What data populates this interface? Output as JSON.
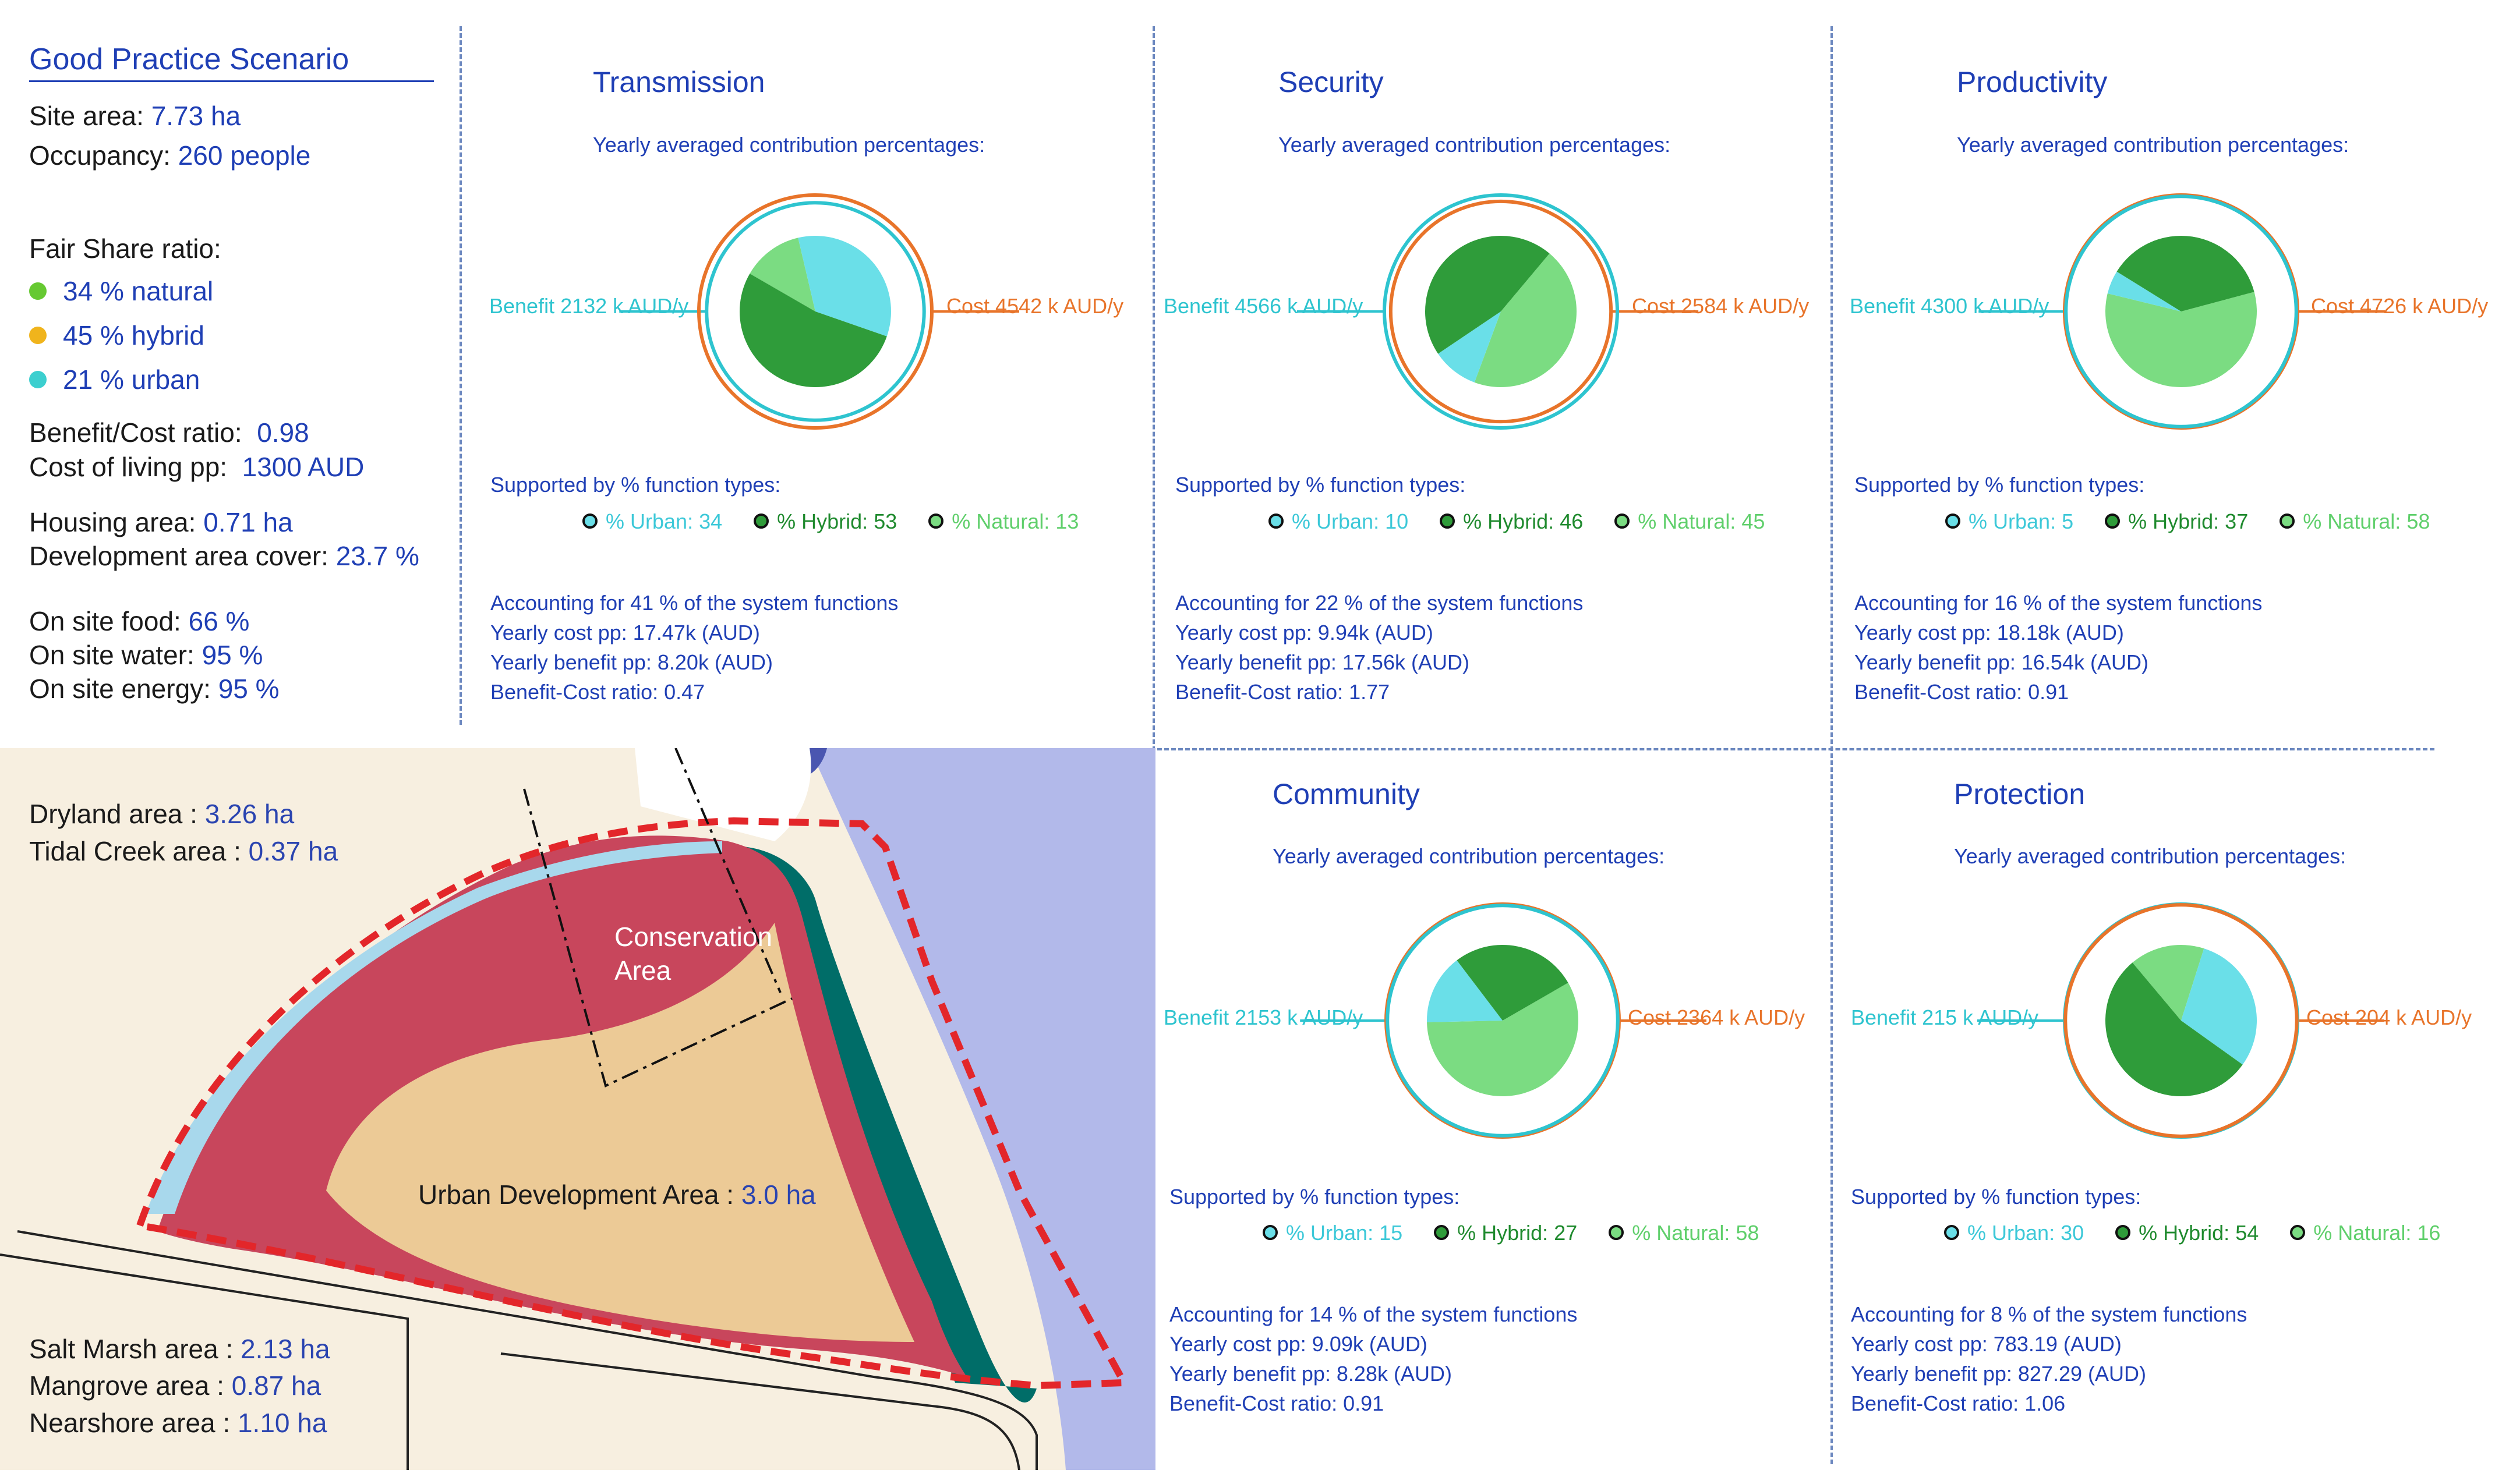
{
  "summary": {
    "title": "Good Practice Scenario",
    "site_area_label": "Site area: ",
    "site_area_value": "7.73 ha",
    "occupancy_label": "Occupancy: ",
    "occupancy_value": "260 people",
    "fair_share_label": "Fair Share ratio:",
    "fair_share": [
      {
        "text": "34 % natural",
        "color": "#66c932"
      },
      {
        "text": "45 % hybrid",
        "color": "#f0b41c"
      },
      {
        "text": "21 % urban",
        "color": "#3ccfcf"
      }
    ],
    "bc_ratio_label": "Benefit/Cost ratio:",
    "bc_ratio_value": "0.98",
    "cost_living_label": "Cost of living pp:",
    "cost_living_value": "1300 AUD",
    "housing_label": "Housing area: ",
    "housing_value": "0.71 ha",
    "dev_cover_label": "Development area cover: ",
    "dev_cover_value": "23.7 %",
    "food_label": "On site food: ",
    "food_value": "66 %",
    "water_label": "On site water: ",
    "water_value": "95 %",
    "energy_label": "On site energy: ",
    "energy_value": "95 %"
  },
  "colors": {
    "urban": "#6adfe8",
    "hybrid": "#2f9c3a",
    "natural": "#7bdc82",
    "benefit": "#2ec4cf",
    "cost": "#e8742a",
    "text_blue": "#1f3fb5"
  },
  "common": {
    "subtitle": "Yearly averaged contribution percentages:",
    "supported_label": "Supported by % function types:",
    "urban_prefix": "% Urban: ",
    "hybrid_prefix": "% Hybrid: ",
    "natural_prefix": "% Natural: "
  },
  "panels": [
    {
      "title": "Transmission",
      "benefit": "Benefit 2132 k AUD/y",
      "cost": "Cost 4542 k AUD/y",
      "urban": 34,
      "hybrid": 53,
      "natural": 13,
      "accounting": "Accounting for 41 % of the system functions",
      "yearly_cost": "Yearly cost pp: 17.47k (AUD)",
      "yearly_benefit": "Yearly benefit pp: 8.20k (AUD)",
      "bc_ratio": "Benefit-Cost ratio: 0.47",
      "benefit_value": 2132,
      "cost_value": 4542
    },
    {
      "title": "Security",
      "benefit": "Benefit 4566 k AUD/y",
      "cost": "Cost 2584 k AUD/y",
      "urban": 10,
      "hybrid": 46,
      "natural": 45,
      "accounting": "Accounting for 22 % of the system functions",
      "yearly_cost": "Yearly cost pp: 9.94k (AUD)",
      "yearly_benefit": "Yearly benefit pp: 17.56k (AUD)",
      "bc_ratio": "Benefit-Cost ratio: 1.77",
      "benefit_value": 4566,
      "cost_value": 2584
    },
    {
      "title": "Productivity",
      "benefit": "Benefit 4300 k AUD/y",
      "cost": "Cost 4726 k AUD/y",
      "urban": 5,
      "hybrid": 37,
      "natural": 58,
      "accounting": "Accounting for 16 % of the system functions",
      "yearly_cost": "Yearly cost pp: 18.18k (AUD)",
      "yearly_benefit": "Yearly benefit pp: 16.54k (AUD)",
      "bc_ratio": "Benefit-Cost ratio: 0.91",
      "benefit_value": 4300,
      "cost_value": 4726
    },
    {
      "title": "Community",
      "benefit": "Benefit 2153 k AUD/y",
      "cost": "Cost 2364 k AUD/y",
      "urban": 15,
      "hybrid": 27,
      "natural": 58,
      "accounting": "Accounting for 14 % of the system functions",
      "yearly_cost": "Yearly cost pp: 9.09k (AUD)",
      "yearly_benefit": "Yearly benefit pp: 8.28k (AUD)",
      "bc_ratio": "Benefit-Cost ratio: 0.91",
      "benefit_value": 2153,
      "cost_value": 2364
    },
    {
      "title": "Protection",
      "benefit": "Benefit 215 k AUD/y",
      "cost": "Cost 204 k AUD/y",
      "urban": 30,
      "hybrid": 54,
      "natural": 16,
      "accounting": "Accounting for 8 % of the system functions",
      "yearly_cost": "Yearly cost pp: 783.19 (AUD)",
      "yearly_benefit": "Yearly benefit pp: 827.29 (AUD)",
      "bc_ratio": "Benefit-Cost ratio: 1.06",
      "benefit_value": 215,
      "cost_value": 204
    }
  ],
  "map": {
    "dryland_label": "Dryland area : ",
    "dryland_value": "3.26 ha",
    "tidal_label": "Tidal Creek area : ",
    "tidal_value": "0.37 ha",
    "conservation_label": "Conservation Area",
    "urban_dev_label": "Urban Development Area : ",
    "urban_dev_value": "3.0 ha",
    "saltmarsh_label": "Salt Marsh area : ",
    "saltmarsh_value": "2.13 ha",
    "mangrove_label": "Mangrove area : ",
    "mangrove_value": "0.87 ha",
    "nearshore_label": "Nearshore area : ",
    "nearshore_value": "1.10 ha"
  }
}
